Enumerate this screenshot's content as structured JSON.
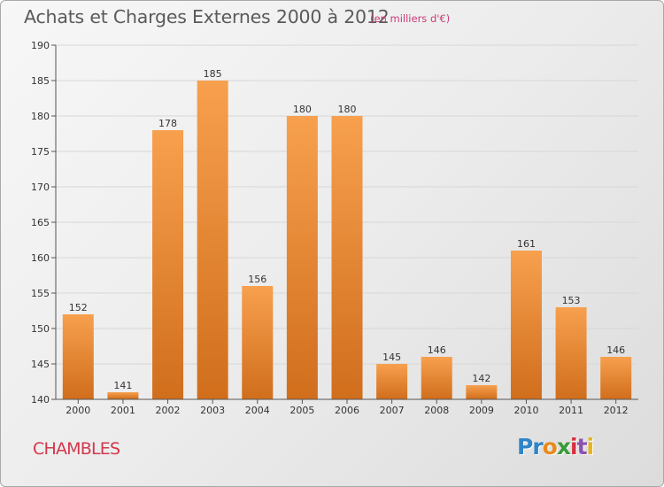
{
  "title": "Achats et Charges Externes 2000 à 2012",
  "subtitle": "(en milliers d'€)",
  "commune": "CHAMBLES",
  "logo": {
    "parts": [
      "Pr",
      "o",
      "x",
      "i",
      "t",
      "i"
    ]
  },
  "colors": {
    "bar_light": "#f7a04e",
    "bar_dark": "#d06e1c",
    "title": "#5a5a5a",
    "subtitle": "#c93a7a",
    "commune": "#d2384d"
  },
  "chart_data": {
    "type": "bar",
    "categories": [
      "2000",
      "2001",
      "2002",
      "2003",
      "2004",
      "2005",
      "2006",
      "2007",
      "2008",
      "2009",
      "2010",
      "2011",
      "2012"
    ],
    "values": [
      152,
      141,
      178,
      185,
      156,
      180,
      180,
      145,
      146,
      142,
      161,
      153,
      146
    ],
    "value_labels": [
      "152",
      "141",
      "178",
      "185",
      "156",
      "180",
      "180",
      "145",
      "146",
      "142",
      "161",
      "153",
      "146"
    ],
    "ylim": [
      140,
      190
    ],
    "yticks": [
      140,
      145,
      150,
      155,
      160,
      165,
      170,
      175,
      180,
      185,
      190
    ],
    "ytick_labels": [
      "140",
      "145",
      "150",
      "155",
      "160",
      "165",
      "170",
      "175",
      "180",
      "185",
      "190"
    ],
    "grid": true,
    "xlabel": "",
    "ylabel": ""
  }
}
